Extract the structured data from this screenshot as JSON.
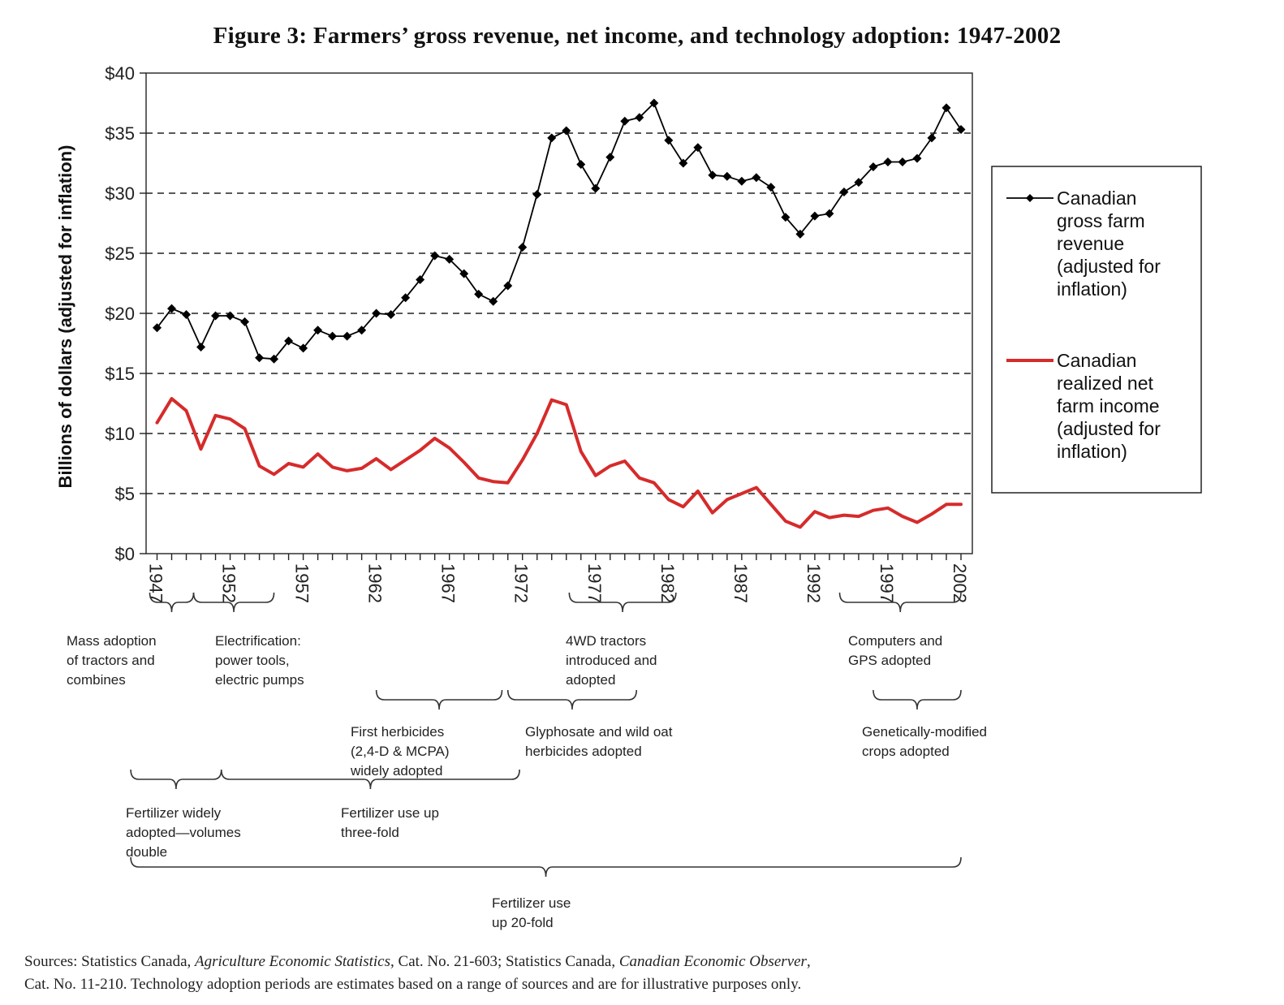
{
  "title": "Figure 3: Farmers’ gross revenue, net income, and technology adoption: 1947-2002",
  "chart_data": {
    "type": "line",
    "title": "Figure 3: Farmers’ gross revenue, net income, and technology adoption: 1947-2002",
    "xlabel": "",
    "ylabel": "Billions of dollars (adjusted for inflation)",
    "xlim": [
      1947,
      2002
    ],
    "ylim": [
      0,
      40
    ],
    "yticks": [
      0,
      5,
      10,
      15,
      20,
      25,
      30,
      35,
      40
    ],
    "ytick_labels": [
      "$0",
      "$5",
      "$10",
      "$15",
      "$20",
      "$25",
      "$30",
      "$35",
      "$40"
    ],
    "xtick_labels": [
      "1947",
      "1952",
      "1957",
      "1962",
      "1967",
      "1972",
      "1977",
      "1982",
      "1987",
      "1992",
      "1997",
      "2002"
    ],
    "grid": "horizontal-dashed",
    "legend_position": "right",
    "x": [
      1947,
      1948,
      1949,
      1950,
      1951,
      1952,
      1953,
      1954,
      1955,
      1956,
      1957,
      1958,
      1959,
      1960,
      1961,
      1962,
      1963,
      1964,
      1965,
      1966,
      1967,
      1968,
      1969,
      1970,
      1971,
      1972,
      1973,
      1974,
      1975,
      1976,
      1977,
      1978,
      1979,
      1980,
      1981,
      1982,
      1983,
      1984,
      1985,
      1986,
      1987,
      1988,
      1989,
      1990,
      1991,
      1992,
      1993,
      1994,
      1995,
      1996,
      1997,
      1998,
      1999,
      2000,
      2001,
      2002
    ],
    "series": [
      {
        "name": "Canadian gross farm revenue (adjusted for inflation)",
        "color": "#000000",
        "marker": "diamond",
        "values": [
          18.8,
          20.4,
          19.9,
          17.2,
          19.8,
          19.8,
          19.3,
          16.3,
          16.2,
          17.7,
          17.1,
          18.6,
          18.1,
          18.1,
          18.6,
          20.0,
          19.9,
          21.3,
          22.8,
          24.8,
          24.5,
          23.3,
          21.6,
          21.0,
          22.3,
          25.5,
          29.9,
          34.6,
          35.2,
          32.4,
          30.4,
          33.0,
          36.0,
          36.3,
          37.5,
          34.4,
          32.5,
          33.8,
          31.5,
          31.4,
          31.0,
          31.3,
          30.5,
          28.0,
          26.6,
          28.1,
          28.3,
          30.1,
          30.9,
          32.2,
          32.6,
          32.6,
          32.9,
          34.6,
          37.1,
          35.3
        ]
      },
      {
        "name": "Canadian realized net farm income (adjusted for inflation)",
        "color": "#d62b2b",
        "marker": "none",
        "values": [
          10.9,
          12.9,
          11.9,
          8.7,
          11.5,
          11.2,
          10.4,
          7.3,
          6.6,
          7.5,
          7.2,
          8.3,
          7.2,
          6.9,
          7.1,
          7.9,
          7.0,
          7.8,
          8.6,
          9.6,
          8.8,
          7.6,
          6.3,
          6.0,
          5.9,
          7.8,
          10.0,
          12.8,
          12.4,
          8.5,
          6.5,
          7.3,
          7.7,
          6.3,
          5.9,
          4.5,
          3.9,
          5.2,
          3.4,
          4.5,
          5.0,
          5.5,
          4.1,
          2.7,
          2.2,
          3.5,
          3.0,
          3.2,
          3.1,
          3.6,
          3.8,
          3.1,
          2.6,
          3.3,
          4.1,
          4.1
        ]
      }
    ],
    "legend": [
      [
        "Canadian",
        "gross farm",
        "revenue",
        "(adjusted for",
        "inflation)"
      ],
      [
        "Canadian",
        "realized net",
        "farm income",
        "(adjusted for",
        "inflation)"
      ]
    ]
  },
  "annotations": [
    {
      "start": 1946.5,
      "end": 1949.5,
      "level": 0,
      "lines": [
        "Mass adoption",
        "of tractors and",
        "combines"
      ]
    },
    {
      "start": 1949.5,
      "end": 1955.0,
      "level": 0,
      "lines": [
        "Electrification:",
        "power tools,",
        "electric pumps"
      ]
    },
    {
      "start": 1975.2,
      "end": 1982.5,
      "level": 0,
      "lines": [
        "4WD tractors",
        "introduced and",
        "adopted"
      ]
    },
    {
      "start": 1993.7,
      "end": 2002.0,
      "level": 0,
      "lines": [
        "Computers and",
        "GPS adopted"
      ]
    },
    {
      "start": 1962.0,
      "end": 1970.6,
      "level": 1,
      "lines": [
        "First herbicides",
        "(2,4-D & MCPA)",
        "widely adopted"
      ]
    },
    {
      "start": 1971.0,
      "end": 1979.8,
      "level": 1,
      "lines": [
        "Glyphosate and wild oat",
        "herbicides adopted"
      ]
    },
    {
      "start": 1996.0,
      "end": 2002.0,
      "level": 1,
      "lines": [
        "Genetically-modified",
        "crops adopted"
      ]
    },
    {
      "start": 1945.2,
      "end": 1951.4,
      "level": 2,
      "lines": [
        "Fertilizer widely",
        "adopted—volumes",
        "double"
      ]
    },
    {
      "start": 1951.4,
      "end": 1971.8,
      "level": 2,
      "lines": [
        "Fertilizer use up",
        "three-fold"
      ]
    },
    {
      "start": 1945.2,
      "end": 2002.0,
      "level": 3,
      "lines": [
        "Fertilizer use",
        "up 20-fold"
      ]
    }
  ],
  "sources": {
    "line1_pre": "Sources: Statistics Canada, ",
    "line1_ital1": "Agriculture Economic Statistics",
    "line1_mid": ", Cat. No. 21-603; Statistics Canada, ",
    "line1_ital2": "Canadian Economic Observer",
    "line1_post": ",",
    "line2": "Cat. No. 11-210.  Technology adoption periods are estimates based on a range of sources and are for illustrative purposes only."
  }
}
